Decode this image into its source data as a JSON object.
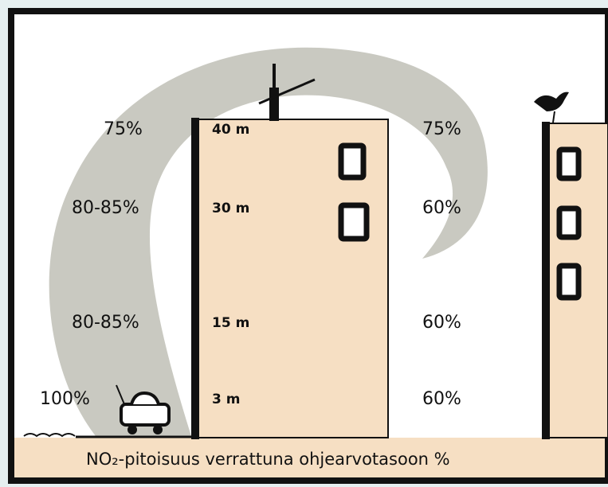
{
  "left_levels": [
    "75%",
    "80-85%",
    "80-85%",
    "100%"
  ],
  "heights": [
    "40 m",
    "30 m",
    "15 m",
    "3 m"
  ],
  "right_levels": [
    "75%",
    "60%",
    "60%",
    "60%"
  ],
  "caption": "NO₂-pitoisuus verrattuna ohjearvotasoon %"
}
